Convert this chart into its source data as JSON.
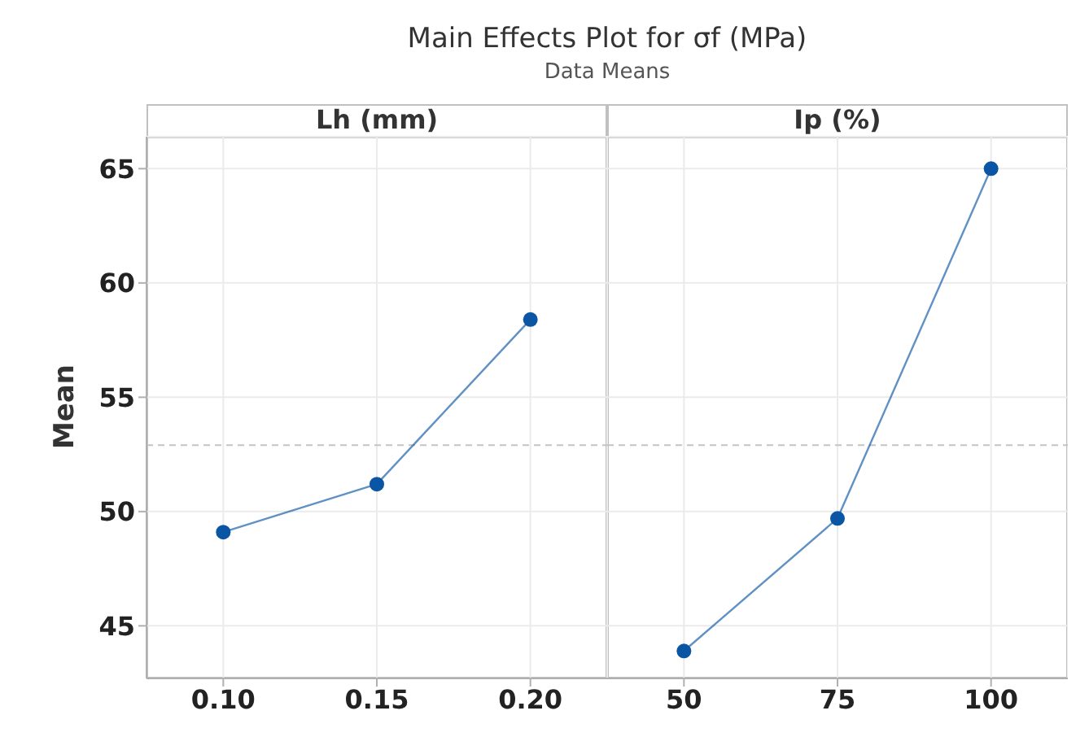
{
  "chart_data": [
    {
      "type": "line",
      "title": "Main Effects Plot for σf (MPa)",
      "subtitle": "Data Means",
      "ylabel": "Mean",
      "xlabel": "Lh (mm)",
      "categories": [
        "0.10",
        "0.15",
        "0.20"
      ],
      "series": [
        {
          "color": "#0a56a5",
          "values": [
            49.1,
            51.2,
            58.4
          ]
        }
      ],
      "ylim": [
        42.7,
        66.4
      ],
      "yticks": [
        45,
        50,
        55,
        60,
        65
      ],
      "ref_lines": [
        {
          "axis": "y",
          "value": 52.9,
          "line_style": "dashed",
          "color": "#c4c4c4"
        }
      ],
      "grid": true,
      "marker": "circle",
      "line_style": "solid"
    },
    {
      "type": "line",
      "xlabel": "Ip (%)",
      "categories": [
        "50",
        "75",
        "100"
      ],
      "series": [
        {
          "color": "#0a56a5",
          "values": [
            43.9,
            49.7,
            65.0
          ]
        }
      ],
      "ylim": [
        42.7,
        66.4
      ],
      "yticks": [
        45,
        50,
        55,
        60,
        65
      ],
      "tick_labels": "x",
      "ref_lines": [
        {
          "axis": "y",
          "value": 52.9,
          "line_style": "dashed",
          "color": "#c4c4c4"
        }
      ],
      "grid": true,
      "marker": "circle",
      "line_style": "solid"
    }
  ]
}
